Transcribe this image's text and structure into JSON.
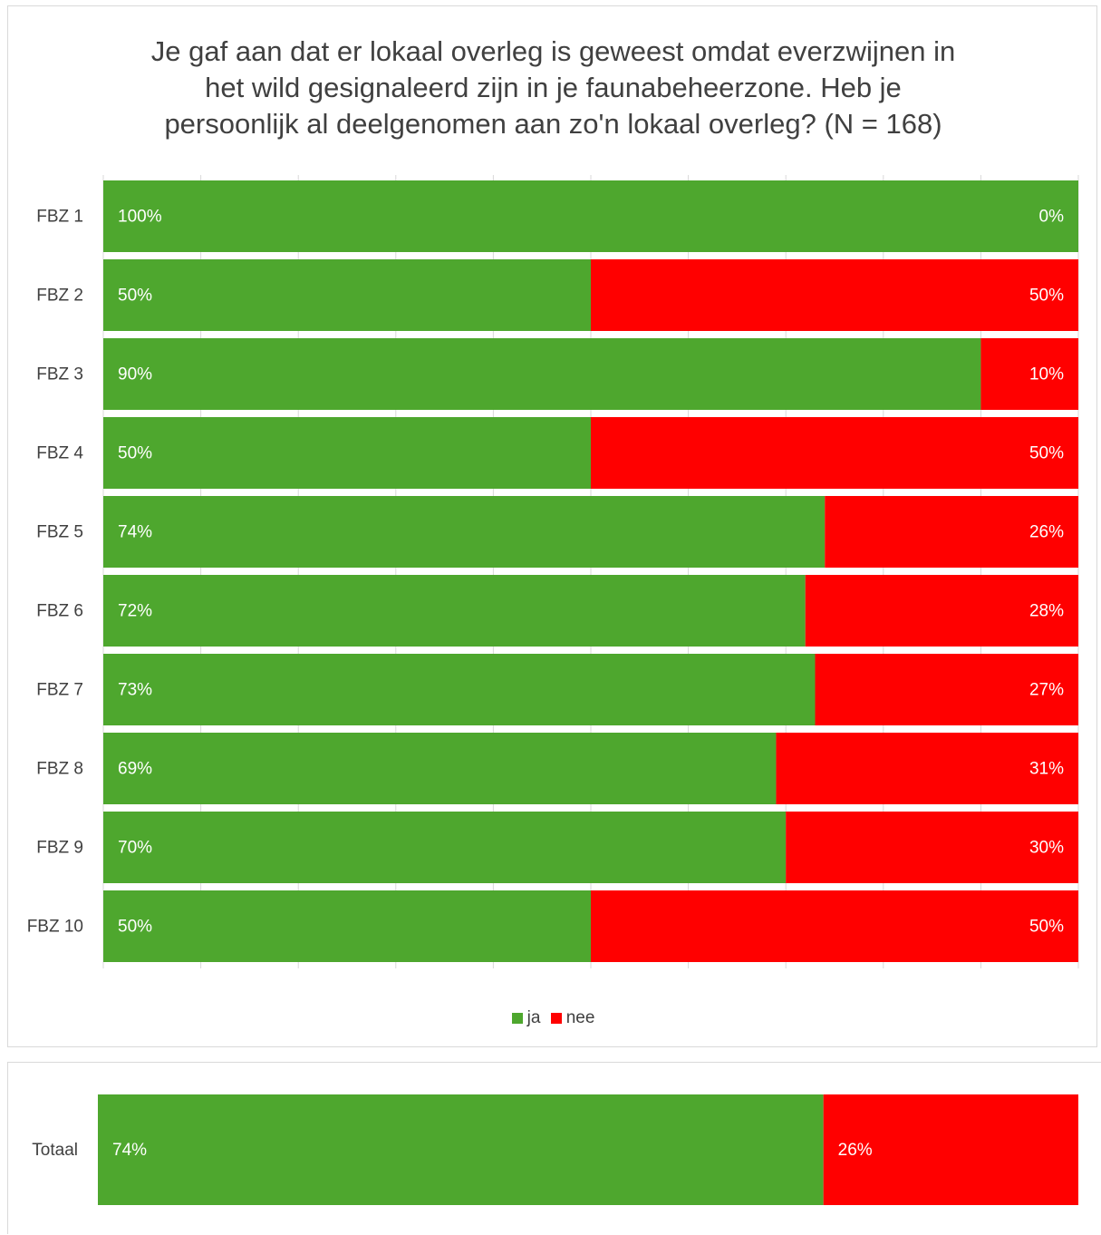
{
  "chart_data": [
    {
      "type": "bar",
      "orientation": "horizontal",
      "stacked": "percent",
      "title": "Je gaf aan dat er lokaal overleg is geweest omdat everzwijnen in het wild gesignaleerd zijn in je faunabeheerzone. Heb je persoonlijk al deelgenomen aan zo'n lokaal overleg? (N = 168)",
      "title_lines": [
        "Je gaf aan dat er lokaal overleg is geweest omdat everzwijnen in",
        "het wild gesignaleerd zijn in je faunabeheerzone. Heb je",
        "persoonlijk al deelgenomen aan zo'n lokaal overleg? (N = 168)"
      ],
      "categories": [
        "FBZ 1",
        "FBZ 2",
        "FBZ 3",
        "FBZ 4",
        "FBZ 5",
        "FBZ 6",
        "FBZ 7",
        "FBZ 8",
        "FBZ 9",
        "FBZ 10"
      ],
      "series": [
        {
          "name": "ja",
          "color": "#4ea72e",
          "values": [
            100,
            50,
            90,
            50,
            74,
            72,
            73,
            69,
            70,
            50
          ],
          "labels": [
            "100%",
            "50%",
            "90%",
            "50%",
            "74%",
            "72%",
            "73%",
            "69%",
            "70%",
            "50%"
          ]
        },
        {
          "name": "nee",
          "color": "#ff0000",
          "values": [
            0,
            50,
            10,
            50,
            26,
            28,
            27,
            31,
            30,
            50
          ],
          "labels": [
            "0%",
            "50%",
            "10%",
            "50%",
            "26%",
            "28%",
            "27%",
            "31%",
            "30%",
            "50%"
          ]
        }
      ],
      "xlim": [
        0,
        100
      ],
      "grid": true,
      "legend": "bottom"
    },
    {
      "type": "bar",
      "orientation": "horizontal",
      "stacked": "percent",
      "categories": [
        "Totaal"
      ],
      "series": [
        {
          "name": "ja",
          "color": "#4ea72e",
          "values": [
            74
          ],
          "labels": [
            "74%"
          ]
        },
        {
          "name": "nee",
          "color": "#ff0000",
          "values": [
            26
          ],
          "labels": [
            "26%"
          ]
        }
      ],
      "xlim": [
        0,
        100
      ],
      "grid": false,
      "legend": "none"
    }
  ]
}
